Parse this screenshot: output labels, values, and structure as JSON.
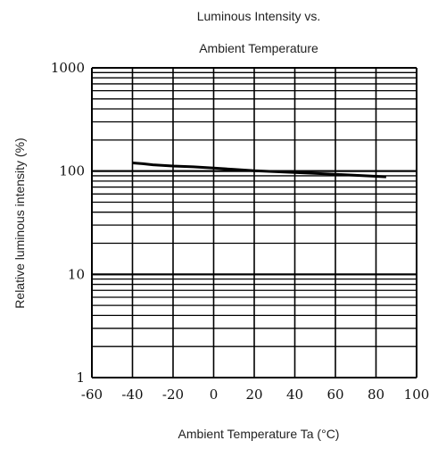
{
  "chart_data": {
    "type": "line",
    "title": "Luminous Intensity vs.",
    "subtitle": "Ambient Temperature",
    "xlabel": "Ambient Temperature Ta (°C)",
    "ylabel": "Relative luminous intensity  (%)",
    "x_ticks": [
      "-60",
      "-40",
      "-20",
      "0",
      "20",
      "40",
      "60",
      "80",
      "100"
    ],
    "y_ticks": [
      "1",
      "10",
      "100",
      "1000"
    ],
    "xlim": [
      -60,
      100
    ],
    "ylim": [
      1,
      1000
    ],
    "y_scale": "log",
    "grid": true,
    "series": [
      {
        "x": [
          -40,
          -35,
          -30,
          -20,
          -10,
          0,
          10,
          20,
          30,
          40,
          50,
          60,
          70,
          80,
          85
        ],
        "values": [
          120,
          118,
          115,
          112,
          110,
          107,
          104,
          101,
          99,
          97,
          95,
          93,
          91,
          89,
          88
        ]
      }
    ]
  }
}
